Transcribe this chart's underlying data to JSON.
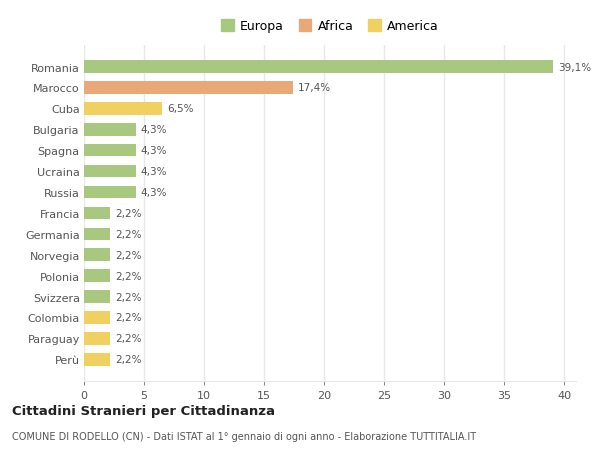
{
  "categories": [
    "Romania",
    "Marocco",
    "Cuba",
    "Bulgaria",
    "Spagna",
    "Ucraina",
    "Russia",
    "Francia",
    "Germania",
    "Norvegia",
    "Polonia",
    "Svizzera",
    "Colombia",
    "Paraguay",
    "Perù"
  ],
  "values": [
    39.1,
    17.4,
    6.5,
    4.3,
    4.3,
    4.3,
    4.3,
    2.2,
    2.2,
    2.2,
    2.2,
    2.2,
    2.2,
    2.2,
    2.2
  ],
  "labels": [
    "39,1%",
    "17,4%",
    "6,5%",
    "4,3%",
    "4,3%",
    "4,3%",
    "4,3%",
    "2,2%",
    "2,2%",
    "2,2%",
    "2,2%",
    "2,2%",
    "2,2%",
    "2,2%",
    "2,2%"
  ],
  "colors": [
    "#a8c880",
    "#e8a878",
    "#f0d060",
    "#a8c880",
    "#a8c880",
    "#a8c880",
    "#a8c880",
    "#a8c880",
    "#a8c880",
    "#a8c880",
    "#a8c880",
    "#a8c880",
    "#f0d060",
    "#f0d060",
    "#f0d060"
  ],
  "legend_labels": [
    "Europa",
    "Africa",
    "America"
  ],
  "legend_colors": [
    "#a8c880",
    "#e8a878",
    "#f0d060"
  ],
  "xlim": [
    0,
    41
  ],
  "xticks": [
    0,
    5,
    10,
    15,
    20,
    25,
    30,
    35,
    40
  ],
  "title": "Cittadini Stranieri per Cittadinanza",
  "subtitle": "COMUNE DI RODELLO (CN) - Dati ISTAT al 1° gennaio di ogni anno - Elaborazione TUTTITALIA.IT",
  "plot_bg_color": "#ffffff",
  "fig_bg_color": "#ffffff",
  "grid_color": "#e8e8e8",
  "text_color": "#555555",
  "bar_height": 0.6
}
